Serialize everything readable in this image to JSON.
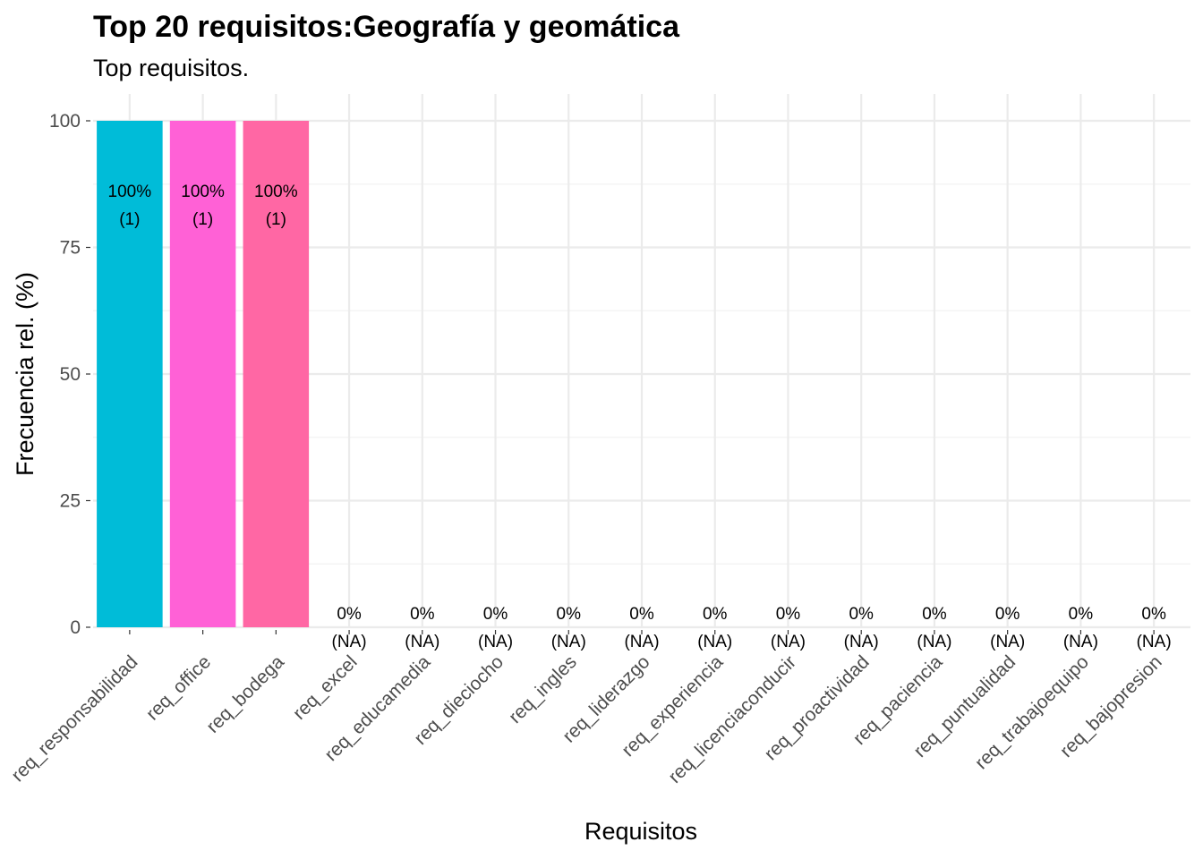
{
  "chart_data": {
    "type": "bar",
    "title": "Top 20 requisitos:Geografía y geomática",
    "subtitle": "Top requisitos.",
    "xlabel": "Requisitos",
    "ylabel": "Frecuencia rel. (%)",
    "ylim": [
      0,
      100
    ],
    "yticks": [
      "0",
      "25",
      "50",
      "75",
      "100"
    ],
    "grid": true,
    "categories": [
      "req_responsabilidad",
      "req_office",
      "req_bodega",
      "req_excel",
      "req_educamedia",
      "req_dieciocho",
      "req_ingles",
      "req_liderazgo",
      "req_experiencia",
      "req_licenciaconducir",
      "req_proactividad",
      "req_paciencia",
      "req_puntualidad",
      "req_trabajoequipo",
      "req_bajopresion"
    ],
    "values": [
      100,
      100,
      100,
      0,
      0,
      0,
      0,
      0,
      0,
      0,
      0,
      0,
      0,
      0,
      0
    ],
    "bar_labels": [
      "100%",
      "100%",
      "100%",
      "0%",
      "0%",
      "0%",
      "0%",
      "0%",
      "0%",
      "0%",
      "0%",
      "0%",
      "0%",
      "0%",
      "0%"
    ],
    "count_labels": [
      "(1)",
      "(1)",
      "(1)",
      "(NA)",
      "(NA)",
      "(NA)",
      "(NA)",
      "(NA)",
      "(NA)",
      "(NA)",
      "(NA)",
      "(NA)",
      "(NA)",
      "(NA)",
      "(NA)"
    ],
    "colors": [
      "#00BCD8",
      "#FF61D6",
      "#FF67A4",
      "#999999",
      "#999999",
      "#999999",
      "#999999",
      "#999999",
      "#999999",
      "#999999",
      "#999999",
      "#999999",
      "#999999",
      "#999999",
      "#999999"
    ]
  }
}
